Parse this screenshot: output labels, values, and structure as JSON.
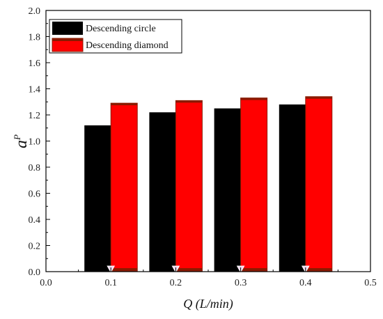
{
  "chart_data": {
    "type": "bar",
    "x": [
      0.1,
      0.2,
      0.3,
      0.4
    ],
    "series": [
      {
        "name": "Descending circle",
        "values": [
          1.12,
          1.22,
          1.25,
          1.28
        ],
        "color": "#000000"
      },
      {
        "name": "Descending diamond",
        "values": [
          1.29,
          1.31,
          1.33,
          1.34
        ],
        "color": "#ff0000",
        "cap_color": "#8b1a00"
      }
    ],
    "xlabel": "Q (L/min)",
    "ylabel_base": "a",
    "ylabel_sup": "P",
    "xlim": [
      0.0,
      0.5
    ],
    "ylim": [
      0.0,
      2.0
    ],
    "xticks": [
      "0.0",
      "0.1",
      "0.2",
      "0.3",
      "0.4",
      "0.5"
    ],
    "yticks": [
      "0.0",
      "0.2",
      "0.4",
      "0.6",
      "0.8",
      "1.0",
      "1.2",
      "1.4",
      "1.6",
      "1.8",
      "2.0"
    ],
    "legend_position": "top-left",
    "grid": false
  }
}
